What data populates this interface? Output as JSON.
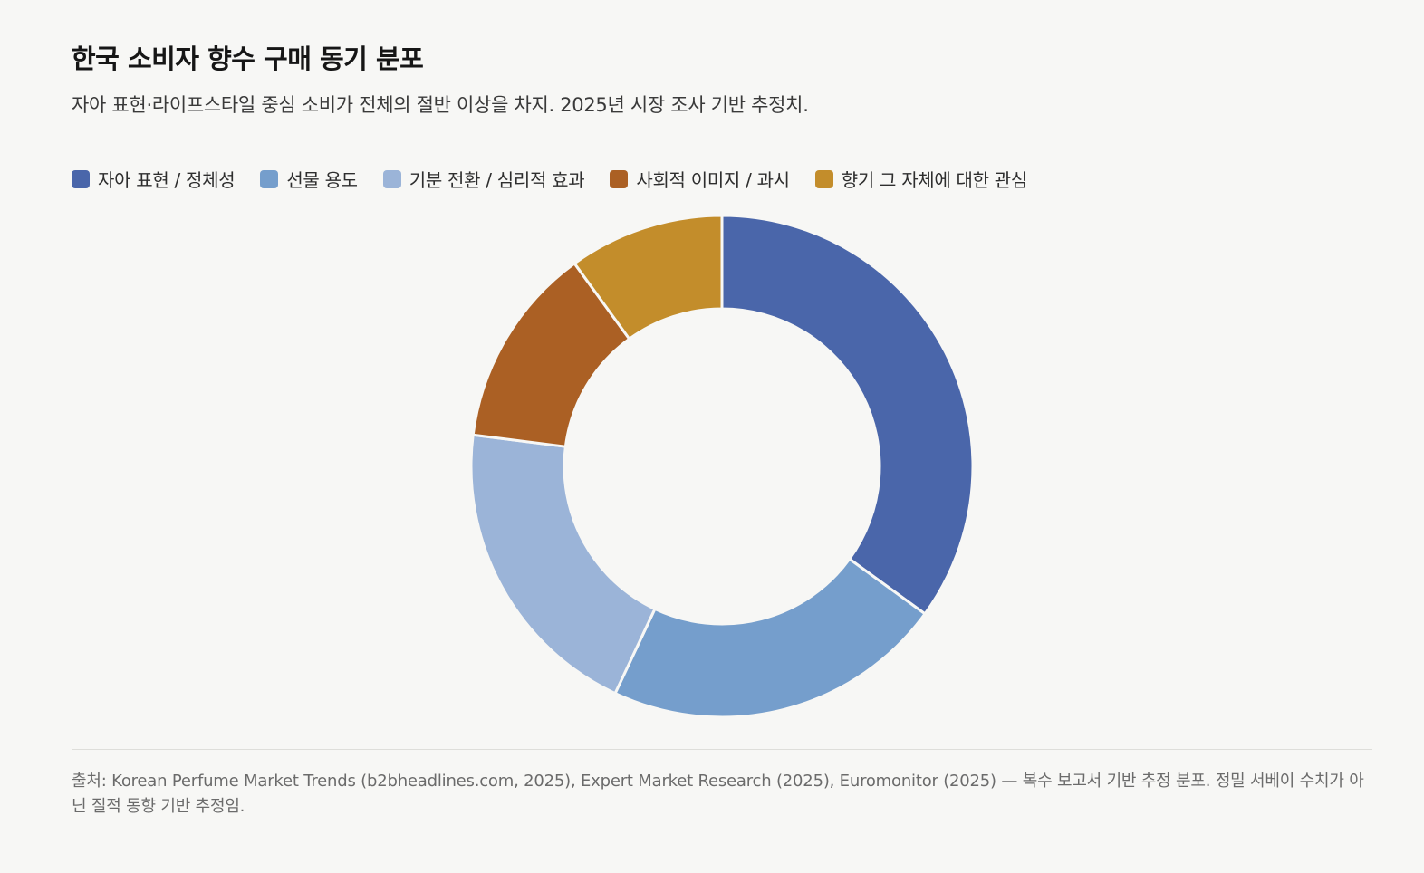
{
  "chart_data": {
    "type": "pie",
    "title": "한국 소비자 향수 구매 동기 분포",
    "subtitle": "자아 표현·라이프스타일 중심 소비가 전체의 절반 이상을 차지. 2025년 시장 조사 기반 추정치.",
    "categories": [
      "자아 표현 / 정체성",
      "선물 용도",
      "기분 전환 / 심리적 효과",
      "사회적 이미지 / 과시",
      "향기 그 자체에 대한 관심"
    ],
    "values": [
      35,
      22,
      20,
      13,
      10
    ],
    "colors": [
      "#4a66aa",
      "#759ecc",
      "#9bb4d8",
      "#ab6024",
      "#c38d2b"
    ],
    "donut": true,
    "legend_position": "top-left",
    "source": "출처: Korean Perfume Market Trends (b2bheadlines.com, 2025), Expert Market Research (2025), Euromonitor (2025) — 복수 보고서 기반 추정 분포. 정밀 서베이 수치가 아닌 질적 동향 기반 추정임."
  }
}
